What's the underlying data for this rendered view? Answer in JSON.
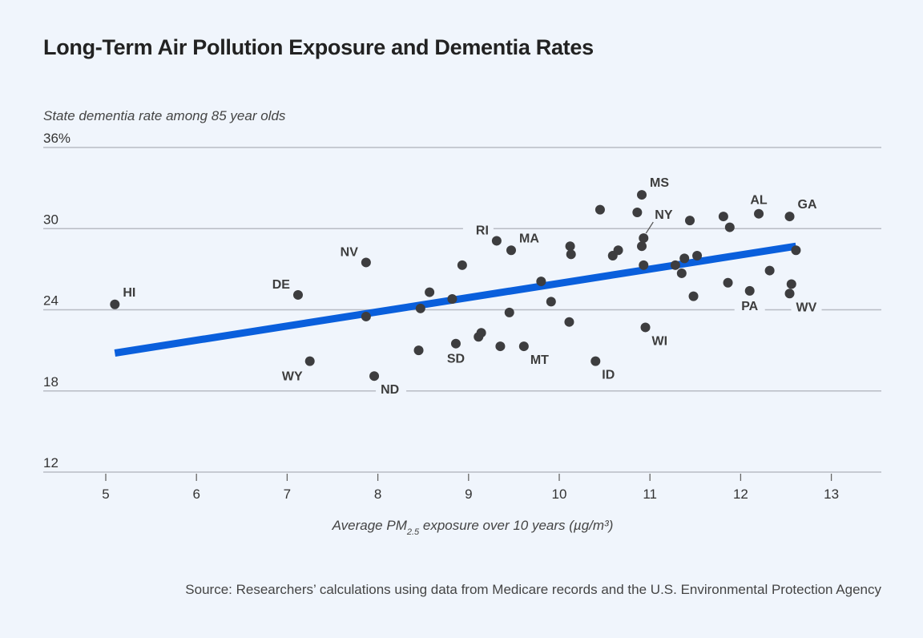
{
  "chart_data": {
    "type": "scatter",
    "title": "Long-Term Air Pollution Exposure and Dementia Rates",
    "ylabel": "State dementia rate among 85 year olds",
    "xlabel": "Average PM",
    "xlabel_subscript": "2.5",
    "xlabel_suffix": " exposure over 10 years (µg/m³)",
    "xlim": [
      4.35,
      13.55
    ],
    "ylim": [
      12,
      36
    ],
    "xticks": [
      5,
      6,
      7,
      8,
      9,
      10,
      11,
      12,
      13
    ],
    "yticks": [
      12,
      18,
      24,
      30,
      36
    ],
    "ytick_labels": [
      "12",
      "18",
      "24",
      "30",
      "36%"
    ],
    "grid": "horizontal",
    "colors": {
      "points": "#3d3d3f",
      "trend": "#0a5fdc",
      "grid": "#b8bcc4"
    },
    "points": [
      {
        "x": 5.1,
        "y": 24.4,
        "label": "HI",
        "label_pos": "upper-right"
      },
      {
        "x": 7.12,
        "y": 25.1,
        "label": "DE",
        "label_pos": "upper-left"
      },
      {
        "x": 7.25,
        "y": 20.2,
        "label": "WY",
        "label_pos": "lower-left"
      },
      {
        "x": 7.87,
        "y": 27.5,
        "label": "NV",
        "label_pos": "upper-left"
      },
      {
        "x": 7.87,
        "y": 23.5
      },
      {
        "x": 7.96,
        "y": 19.1,
        "label": "ND",
        "label_pos": "lower-right"
      },
      {
        "x": 8.45,
        "y": 21.0
      },
      {
        "x": 8.47,
        "y": 24.1
      },
      {
        "x": 8.57,
        "y": 25.3
      },
      {
        "x": 8.82,
        "y": 24.8
      },
      {
        "x": 8.86,
        "y": 21.5,
        "label": "SD",
        "label_pos": "below"
      },
      {
        "x": 8.93,
        "y": 27.3
      },
      {
        "x": 9.11,
        "y": 22.0
      },
      {
        "x": 9.14,
        "y": 22.3
      },
      {
        "x": 9.31,
        "y": 29.1,
        "label": "RI",
        "label_pos": "upper-left"
      },
      {
        "x": 9.35,
        "y": 21.3
      },
      {
        "x": 9.45,
        "y": 23.8
      },
      {
        "x": 9.47,
        "y": 28.4,
        "label": "MA",
        "label_pos": "upper-right"
      },
      {
        "x": 9.61,
        "y": 21.3,
        "label": "MT",
        "label_pos": "lower-right"
      },
      {
        "x": 9.8,
        "y": 26.1
      },
      {
        "x": 9.91,
        "y": 24.6
      },
      {
        "x": 10.11,
        "y": 23.1
      },
      {
        "x": 10.12,
        "y": 28.7
      },
      {
        "x": 10.13,
        "y": 28.1
      },
      {
        "x": 10.4,
        "y": 20.2,
        "label": "ID",
        "label_pos": "lower-right"
      },
      {
        "x": 10.45,
        "y": 31.4
      },
      {
        "x": 10.59,
        "y": 28.0
      },
      {
        "x": 10.65,
        "y": 28.4
      },
      {
        "x": 10.86,
        "y": 31.2
      },
      {
        "x": 10.91,
        "y": 32.5,
        "label": "MS",
        "label_pos": "upper-right"
      },
      {
        "x": 10.93,
        "y": 29.3,
        "label": "NY",
        "label_pos": "leader"
      },
      {
        "x": 10.91,
        "y": 28.7
      },
      {
        "x": 10.93,
        "y": 27.3
      },
      {
        "x": 10.95,
        "y": 22.7,
        "label": "WI",
        "label_pos": "lower-right"
      },
      {
        "x": 11.28,
        "y": 27.3
      },
      {
        "x": 11.35,
        "y": 26.7
      },
      {
        "x": 11.38,
        "y": 27.8
      },
      {
        "x": 11.44,
        "y": 30.6
      },
      {
        "x": 11.48,
        "y": 25.0
      },
      {
        "x": 11.52,
        "y": 28.0
      },
      {
        "x": 11.81,
        "y": 30.9
      },
      {
        "x": 11.86,
        "y": 26.0
      },
      {
        "x": 11.88,
        "y": 30.1
      },
      {
        "x": 12.1,
        "y": 25.4,
        "label": "PA",
        "label_pos": "below"
      },
      {
        "x": 12.2,
        "y": 31.1,
        "label": "AL",
        "label_pos": "above"
      },
      {
        "x": 12.32,
        "y": 26.9
      },
      {
        "x": 12.54,
        "y": 30.9,
        "label": "GA",
        "label_pos": "upper-right"
      },
      {
        "x": 12.56,
        "y": 25.9
      },
      {
        "x": 12.54,
        "y": 25.2,
        "label": "WV",
        "label_pos": "lower-right"
      },
      {
        "x": 12.61,
        "y": 28.4
      }
    ],
    "trendline": {
      "x": [
        5.1,
        12.61
      ],
      "y": [
        20.8,
        28.7
      ]
    }
  },
  "source": "Source: Researchers’ calculations using data from Medicare records and the U.S. Environmental Protection Agency"
}
